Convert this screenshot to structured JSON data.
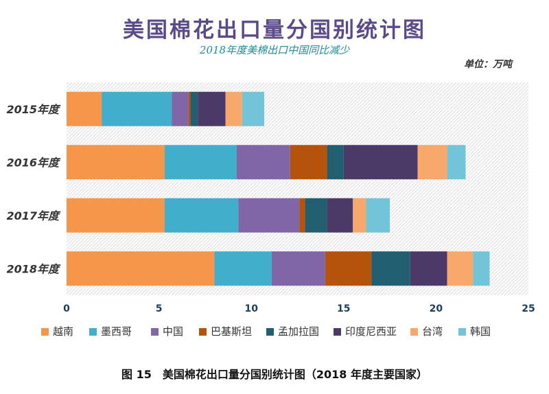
{
  "chart_data": {
    "type": "bar",
    "orientation": "horizontal",
    "stacked": true,
    "title": "美国棉花出口量分国别统计图",
    "subtitle": "2018年度美棉出口中国同比减少",
    "unit_label": "单位：万吨",
    "caption": "图 15　美国棉花出口量分国别统计图（2018 年度主要国家）",
    "categories": [
      "2015年度",
      "2016年度",
      "2017年度",
      "2018年度"
    ],
    "series": [
      {
        "name": "越南",
        "color": "#f5964a",
        "values": [
          1.9,
          5.3,
          5.3,
          8.0
        ]
      },
      {
        "name": "墨西哥",
        "color": "#41aecb",
        "values": [
          3.8,
          3.9,
          4.0,
          3.1
        ]
      },
      {
        "name": "中国",
        "color": "#8065a7",
        "values": [
          0.9,
          2.9,
          3.3,
          2.9
        ]
      },
      {
        "name": "巴基斯坦",
        "color": "#b45309",
        "values": [
          0.1,
          2.0,
          0.3,
          2.5
        ]
      },
      {
        "name": "孟加拉国",
        "color": "#215f70",
        "values": [
          0.4,
          0.9,
          1.2,
          2.1
        ]
      },
      {
        "name": "印度尼西亚",
        "color": "#4b3a68",
        "values": [
          1.5,
          4.0,
          1.4,
          2.0
        ]
      },
      {
        "name": "台湾",
        "color": "#f9a86c",
        "values": [
          0.9,
          1.6,
          0.7,
          1.4
        ]
      },
      {
        "name": "韩国",
        "color": "#72c4d8",
        "values": [
          1.2,
          1.0,
          1.3,
          0.9
        ]
      }
    ],
    "xlim": [
      0,
      25
    ],
    "xticks": [
      "0",
      "5",
      "10",
      "15",
      "20",
      "25"
    ],
    "legend_position": "bottom",
    "grid": false
  }
}
